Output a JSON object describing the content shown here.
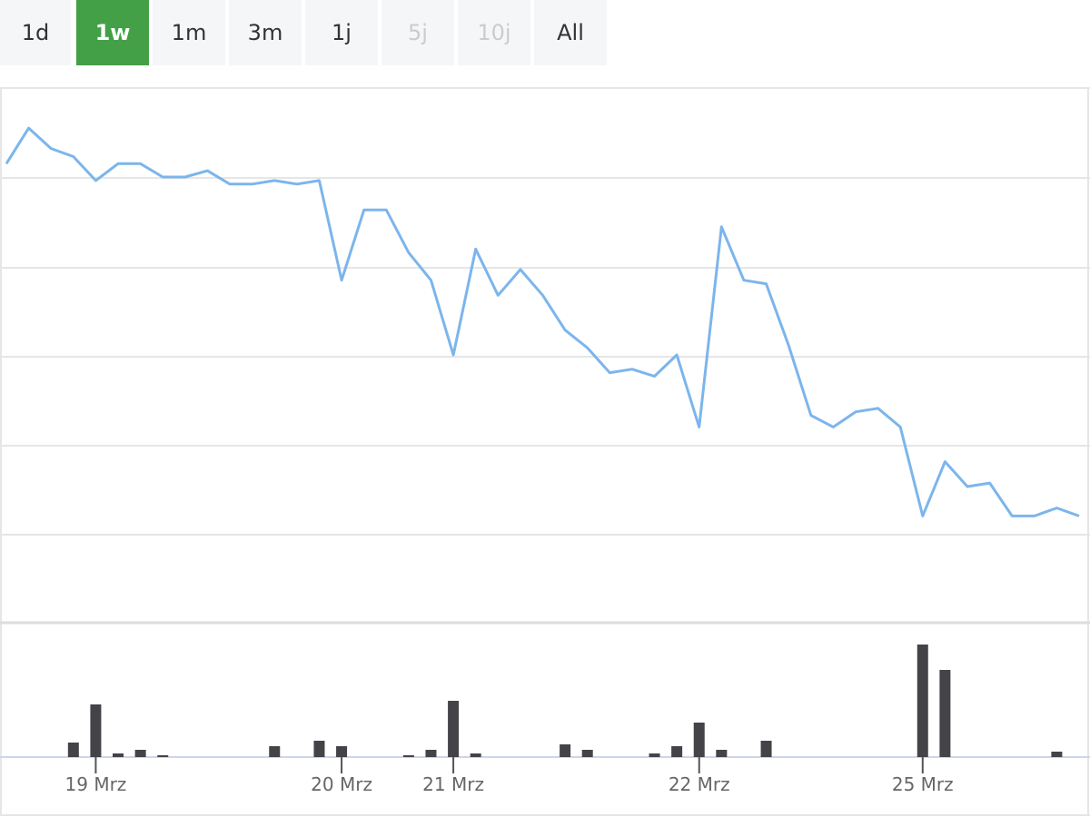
{
  "range_selector": {
    "buttons": [
      {
        "label": "1d",
        "enabled": true
      },
      {
        "label": "1w",
        "enabled": true
      },
      {
        "label": "1m",
        "enabled": true
      },
      {
        "label": "3m",
        "enabled": true
      },
      {
        "label": "1j",
        "enabled": true
      },
      {
        "label": "5j",
        "enabled": false
      },
      {
        "label": "10j",
        "enabled": false
      },
      {
        "label": "All",
        "enabled": true
      }
    ],
    "selected": 1,
    "selected_color": "#43a047"
  },
  "chart_data": [
    {
      "type": "line",
      "color": "#7cb5ec",
      "ylim": [
        0,
        6
      ],
      "values": [
        5.15,
        5.55,
        5.32,
        5.23,
        4.96,
        5.15,
        5.15,
        5.0,
        5.0,
        5.07,
        4.92,
        4.92,
        4.96,
        4.92,
        4.96,
        3.84,
        4.63,
        4.63,
        4.15,
        3.84,
        3.0,
        4.19,
        3.67,
        3.96,
        3.67,
        3.28,
        3.08,
        2.8,
        2.84,
        2.76,
        3.0,
        2.19,
        4.44,
        3.84,
        3.8,
        3.11,
        2.32,
        2.19,
        2.36,
        2.4,
        2.19,
        1.19,
        1.8,
        1.52,
        1.56,
        1.19,
        1.19,
        1.28,
        1.19
      ]
    },
    {
      "type": "bar",
      "color": "#434348",
      "ylim": [
        0,
        146
      ],
      "categories": [
        null,
        null,
        null,
        null,
        "19 Mrz",
        null,
        null,
        null,
        null,
        null,
        null,
        null,
        null,
        null,
        null,
        "20 Mrz",
        null,
        null,
        null,
        null,
        "21 Mrz",
        null,
        null,
        null,
        null,
        null,
        null,
        null,
        null,
        null,
        null,
        "22 Mrz",
        null,
        null,
        null,
        null,
        null,
        null,
        null,
        null,
        null,
        "25 Mrz",
        null,
        null,
        null,
        null,
        null,
        null,
        null
      ],
      "values": [
        0,
        0,
        0,
        16,
        58,
        4,
        8,
        2,
        0,
        0,
        0,
        0,
        12,
        0,
        18,
        12,
        0,
        0,
        2,
        8,
        62,
        4,
        0,
        0,
        0,
        14,
        8,
        0,
        0,
        4,
        12,
        38,
        8,
        0,
        18,
        0,
        0,
        0,
        0,
        0,
        0,
        124,
        96,
        0,
        0,
        0,
        0,
        6,
        0
      ]
    }
  ]
}
